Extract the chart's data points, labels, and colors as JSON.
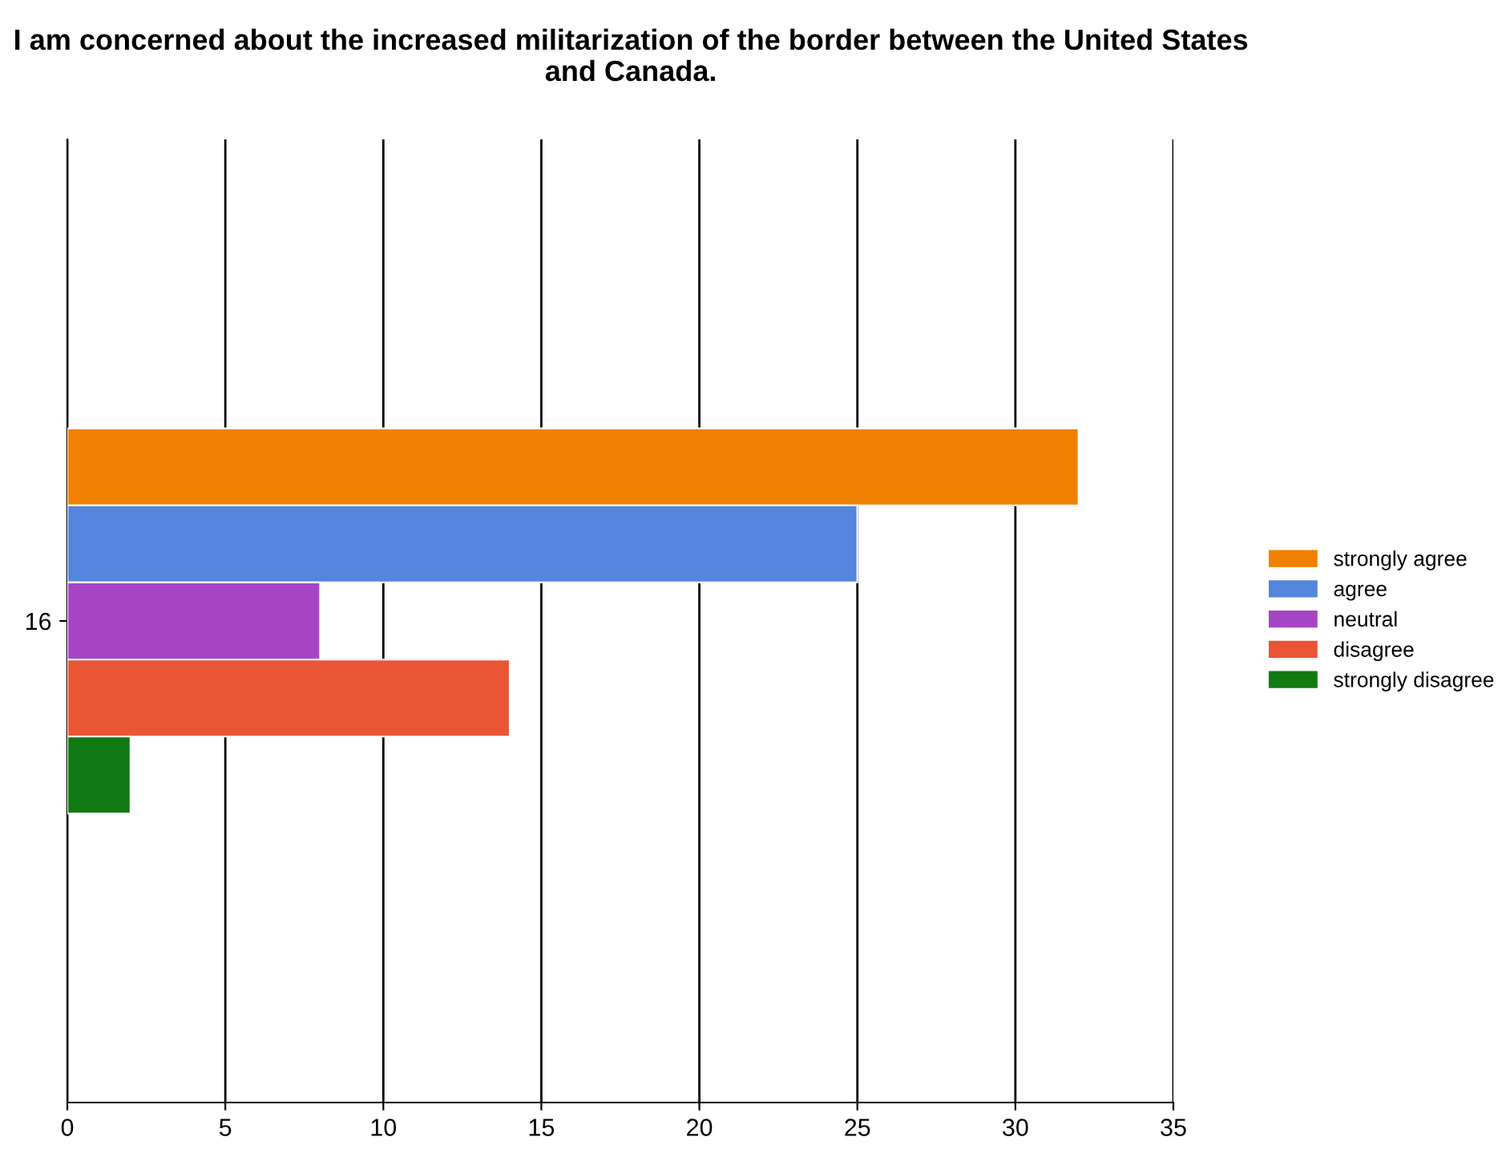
{
  "chart_data": {
    "type": "bar",
    "orientation": "horizontal",
    "title": "I am concerned about the increased militarization of the border between the United States and Canada.",
    "categories": [
      "16"
    ],
    "series": [
      {
        "name": "strongly agree",
        "color": "#f08000",
        "values": [
          32
        ]
      },
      {
        "name": "agree",
        "color": "#5585dc",
        "values": [
          25
        ]
      },
      {
        "name": "neutral",
        "color": "#a545c5",
        "values": [
          8
        ]
      },
      {
        "name": "disagree",
        "color": "#ea5535",
        "values": [
          14
        ]
      },
      {
        "name": "strongly disagree",
        "color": "#127a12",
        "values": [
          2
        ]
      }
    ],
    "xlim": [
      0,
      35
    ],
    "xticks": [
      0,
      5,
      10,
      15,
      20,
      25,
      30,
      35
    ],
    "grid": "x",
    "legend": "right"
  }
}
